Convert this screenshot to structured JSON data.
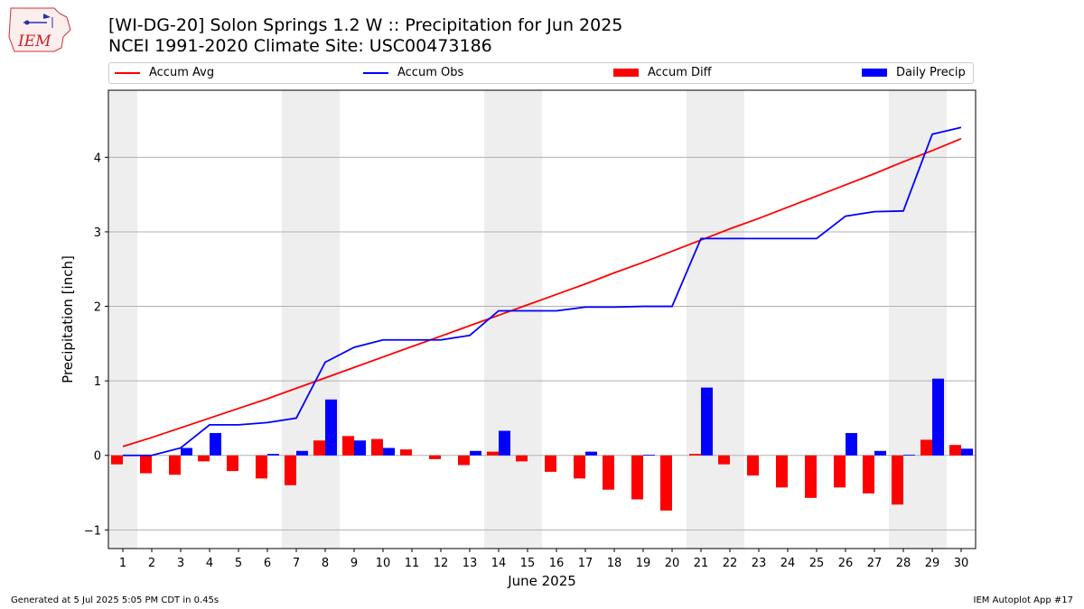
{
  "header": {
    "title_line1": "[WI-DG-20] Solon Springs 1.2 W :: Precipitation for Jun 2025",
    "title_line2": "NCEI 1991-2020 Climate Site: USC00473186",
    "logo_text": "IEM"
  },
  "footer": {
    "left": "Generated at 5 Jul 2025 5:05 PM CDT in 0.45s",
    "right": "IEM Autoplot App #17"
  },
  "legend": [
    {
      "label": "Accum Avg",
      "color": "#ff0000",
      "kind": "line"
    },
    {
      "label": "Accum Obs",
      "color": "#0000ff",
      "kind": "line"
    },
    {
      "label": "Accum Diff",
      "color": "#ff0000",
      "kind": "box"
    },
    {
      "label": "Daily Precip",
      "color": "#0000ff",
      "kind": "box"
    }
  ],
  "chart_data": {
    "type": "bar",
    "xlabel": "June 2025",
    "ylabel": "Precipitation [inch]",
    "xlim": [
      0.5,
      30.5
    ],
    "ylim": [
      -1.25,
      4.9
    ],
    "yticks": [
      -1,
      0,
      1,
      2,
      3,
      4
    ],
    "grid": "horizontal",
    "legend_position": "top",
    "weekend_shading": [
      [
        0.5,
        1.5
      ],
      [
        6.5,
        8.5
      ],
      [
        13.5,
        15.5
      ],
      [
        20.5,
        22.5
      ],
      [
        27.5,
        29.5
      ]
    ],
    "categories": [
      "1",
      "2",
      "3",
      "4",
      "5",
      "6",
      "7",
      "8",
      "9",
      "10",
      "11",
      "12",
      "13",
      "14",
      "15",
      "16",
      "17",
      "18",
      "19",
      "20",
      "21",
      "22",
      "23",
      "24",
      "25",
      "26",
      "27",
      "28",
      "29",
      "30"
    ],
    "series": [
      {
        "name": "Accum Avg",
        "type": "line",
        "color": "#ff0000",
        "values": [
          0.12,
          0.24,
          0.37,
          0.5,
          0.63,
          0.76,
          0.9,
          1.04,
          1.18,
          1.32,
          1.46,
          1.6,
          1.74,
          1.88,
          2.02,
          2.16,
          2.3,
          2.45,
          2.59,
          2.74,
          2.89,
          3.04,
          3.18,
          3.33,
          3.48,
          3.63,
          3.78,
          3.94,
          4.09,
          4.25
        ]
      },
      {
        "name": "Accum Obs",
        "type": "line",
        "color": "#0000ff",
        "values": [
          0.0,
          0.0,
          0.1,
          0.41,
          0.41,
          0.44,
          0.5,
          1.25,
          1.45,
          1.55,
          1.55,
          1.55,
          1.61,
          1.94,
          1.94,
          1.94,
          1.99,
          1.99,
          2.0,
          2.0,
          2.91,
          2.91,
          2.91,
          2.91,
          2.91,
          3.21,
          3.27,
          3.28,
          4.31,
          4.4
        ]
      },
      {
        "name": "Accum Diff",
        "type": "bar",
        "color": "#ff0000",
        "values": [
          -0.12,
          -0.24,
          -0.26,
          -0.08,
          -0.21,
          -0.31,
          -0.4,
          0.2,
          0.26,
          0.22,
          0.08,
          -0.05,
          -0.13,
          0.05,
          -0.08,
          -0.22,
          -0.31,
          -0.46,
          -0.59,
          -0.74,
          0.02,
          -0.12,
          -0.27,
          -0.43,
          -0.57,
          -0.43,
          -0.51,
          -0.66,
          0.21,
          0.14
        ]
      },
      {
        "name": "Daily Precip",
        "type": "bar",
        "color": "#0000ff",
        "values": [
          0.0,
          0.0,
          0.1,
          0.3,
          0.0,
          0.02,
          0.06,
          0.75,
          0.2,
          0.1,
          0.0,
          0.0,
          0.06,
          0.33,
          0.0,
          0.0,
          0.05,
          0.0,
          0.01,
          0.0,
          0.91,
          0.0,
          0.0,
          0.0,
          0.0,
          0.3,
          0.06,
          0.01,
          1.03,
          0.09
        ]
      }
    ]
  }
}
